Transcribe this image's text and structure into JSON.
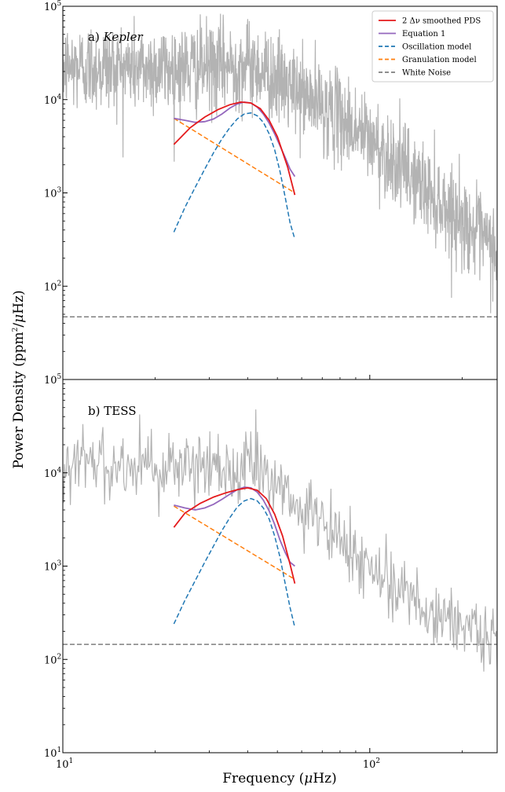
{
  "figure": {
    "ylabel": "Power Density (ppm²/μHz)",
    "xlabel": "Frequency (μHz)",
    "xlabel_text": "Frequency (",
    "xlabel_unit": "μ",
    "xlabel_rest": "Hz)",
    "ylabel_text": "Power Density (ppm",
    "ylabel_sup": "2",
    "ylabel_slash": "/",
    "ylabel_unit": "μ",
    "ylabel_rest": "Hz)"
  },
  "colors": {
    "pds": "#b3b3b3",
    "smoothed": "#e41a1c",
    "equation": "#9467bd",
    "oscillation": "#1f77b4",
    "granulation": "#ff7f0e",
    "white_noise": "#7f7f7f"
  },
  "chart_data": [
    {
      "type": "line",
      "panel_label_prefix": "a) ",
      "panel_label_name": "Kepler",
      "xscale": "log",
      "yscale": "log",
      "xlim": [
        10,
        260
      ],
      "ylim": [
        10,
        100000
      ],
      "xticks": [
        {
          "value": 10,
          "base": "10",
          "exp": "1"
        },
        {
          "value": 100,
          "base": "10",
          "exp": "2"
        }
      ],
      "yticks": [
        {
          "value": 100000,
          "base": "10",
          "exp": "5"
        },
        {
          "value": 10000,
          "base": "10",
          "exp": "4"
        },
        {
          "value": 1000,
          "base": "10",
          "exp": "3"
        },
        {
          "value": 100,
          "base": "10",
          "exp": "2"
        }
      ],
      "legend": {
        "position": "upper right",
        "entries": [
          {
            "label": "2 Δν smoothed PDS",
            "color_key": "smoothed",
            "dash": "solid"
          },
          {
            "label": "Equation 1",
            "color_key": "equation",
            "dash": "solid"
          },
          {
            "label": "Oscillation model",
            "color_key": "oscillation",
            "dash": "dashed"
          },
          {
            "label": "Granulation model",
            "color_key": "granulation",
            "dash": "dashed"
          },
          {
            "label": "White Noise",
            "color_key": "white_noise",
            "dash": "dashed"
          }
        ]
      },
      "white_noise_level": 47,
      "series": [
        {
          "name": "2 Δν smoothed PDS",
          "x": [
            23,
            26,
            29,
            32,
            35,
            38,
            41,
            44,
            47,
            50,
            54,
            57
          ],
          "y": [
            3300,
            5000,
            6500,
            7800,
            8800,
            9400,
            9200,
            8000,
            6000,
            4000,
            1900,
            950
          ]
        },
        {
          "name": "Equation 1",
          "x": [
            23,
            25,
            27,
            29,
            31,
            33,
            35,
            37,
            39,
            41,
            43,
            45,
            47,
            49,
            51,
            53,
            55,
            57
          ],
          "y": [
            6300,
            6000,
            5700,
            5800,
            6200,
            7000,
            8100,
            9000,
            9400,
            9200,
            8300,
            7000,
            5600,
            4300,
            3200,
            2400,
            1800,
            1500
          ]
        },
        {
          "name": "Oscillation model",
          "x": [
            23,
            25,
            27,
            29,
            31,
            33,
            35,
            37,
            39,
            41,
            43,
            45,
            47,
            49,
            51,
            53,
            55,
            57
          ],
          "y": [
            380,
            700,
            1150,
            1800,
            2700,
            3800,
            5000,
            6200,
            7000,
            7200,
            6700,
            5700,
            4300,
            2900,
            1700,
            900,
            480,
            320
          ]
        },
        {
          "name": "Granulation model",
          "x": [
            23,
            57
          ],
          "y": [
            6300,
            1000
          ]
        }
      ]
    },
    {
      "type": "line",
      "panel_label_prefix": "b) ",
      "panel_label_name": "TESS",
      "xscale": "log",
      "yscale": "log",
      "xlim": [
        10,
        260
      ],
      "ylim": [
        10,
        100000
      ],
      "xticks": [
        {
          "value": 10,
          "base": "10",
          "exp": "1"
        },
        {
          "value": 100,
          "base": "10",
          "exp": "2"
        }
      ],
      "yticks": [
        {
          "value": 100000,
          "base": "10",
          "exp": "5"
        },
        {
          "value": 10000,
          "base": "10",
          "exp": "4"
        },
        {
          "value": 1000,
          "base": "10",
          "exp": "3"
        },
        {
          "value": 100,
          "base": "10",
          "exp": "2"
        },
        {
          "value": 10,
          "base": "10",
          "exp": "1"
        }
      ],
      "white_noise_level": 145,
      "series": [
        {
          "name": "2 Δν smoothed PDS",
          "x": [
            23,
            25,
            28,
            31,
            34,
            37,
            40,
            43,
            46,
            49,
            52,
            55,
            57
          ],
          "y": [
            2600,
            3700,
            4700,
            5500,
            6100,
            6600,
            6900,
            6500,
            5300,
            3600,
            2100,
            1050,
            650
          ]
        },
        {
          "name": "Equation 1",
          "x": [
            23,
            25,
            27,
            29,
            31,
            33,
            35,
            37,
            39,
            41,
            43,
            45,
            47,
            49,
            51,
            53,
            55,
            57
          ],
          "y": [
            4500,
            4200,
            4000,
            4200,
            4600,
            5200,
            5900,
            6600,
            7000,
            6900,
            6200,
            5100,
            3900,
            2800,
            1900,
            1400,
            1100,
            1000
          ]
        },
        {
          "name": "Oscillation model",
          "x": [
            23,
            25,
            27,
            29,
            31,
            33,
            35,
            37,
            39,
            41,
            43,
            45,
            47,
            49,
            51,
            53,
            55,
            57
          ],
          "y": [
            240,
            430,
            700,
            1100,
            1650,
            2400,
            3300,
            4300,
            5000,
            5300,
            5000,
            4200,
            3200,
            2100,
            1250,
            650,
            360,
            220
          ]
        },
        {
          "name": "Granulation model",
          "x": [
            23,
            57
          ],
          "y": [
            4400,
            720
          ]
        }
      ]
    }
  ]
}
